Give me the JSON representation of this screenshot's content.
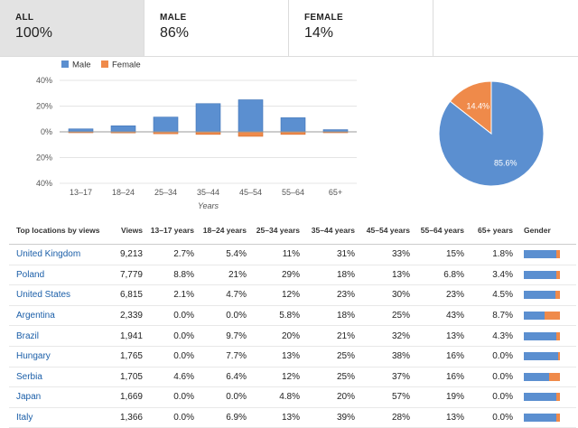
{
  "tabs": [
    {
      "label": "ALL",
      "value": "100%",
      "active": true
    },
    {
      "label": "MALE",
      "value": "86%"
    },
    {
      "label": "FEMALE",
      "value": "14%"
    }
  ],
  "colors": {
    "male": "#5b8fd0",
    "female": "#ef8a4a"
  },
  "chart_data": [
    {
      "type": "bar",
      "categories": [
        "13–17",
        "18–24",
        "25–34",
        "35–44",
        "45–54",
        "55–64",
        "65+"
      ],
      "series": [
        {
          "name": "Male",
          "values": [
            2.3,
            4.7,
            11.5,
            22,
            25,
            11,
            1.7
          ]
        },
        {
          "name": "Female",
          "values": [
            0.3,
            0.8,
            1.5,
            2,
            3.5,
            2,
            0.3
          ]
        }
      ],
      "yticks": [
        "40%",
        "20%",
        "0%",
        "20%",
        "40%"
      ],
      "xlabel": "Years",
      "ylim": [
        -40,
        40
      ],
      "legend": "top-left"
    },
    {
      "type": "pie",
      "labels": [
        "Male",
        "Female"
      ],
      "values": [
        85.6,
        14.4
      ],
      "value_labels": [
        "85.6%",
        "14.4%"
      ]
    }
  ],
  "table": {
    "headers": [
      "Top locations by views",
      "Views",
      "13–17 years",
      "18–24 years",
      "25–34 years",
      "35–44 years",
      "45–54 years",
      "55–64 years",
      "65+ years",
      "Gender"
    ],
    "rows": [
      {
        "name": "United Kingdom",
        "views": "9,213",
        "cols": [
          "2.7%",
          "5.4%",
          "11%",
          "31%",
          "33%",
          "15%",
          "1.8%"
        ],
        "male": 0.9
      },
      {
        "name": "Poland",
        "views": "7,779",
        "cols": [
          "8.8%",
          "21%",
          "29%",
          "18%",
          "13%",
          "6.8%",
          "3.4%"
        ],
        "male": 0.9
      },
      {
        "name": "United States",
        "views": "6,815",
        "cols": [
          "2.1%",
          "4.7%",
          "12%",
          "23%",
          "30%",
          "23%",
          "4.5%"
        ],
        "male": 0.88
      },
      {
        "name": "Argentina",
        "views": "2,339",
        "cols": [
          "0.0%",
          "0.0%",
          "5.8%",
          "18%",
          "25%",
          "43%",
          "8.7%"
        ],
        "male": 0.58
      },
      {
        "name": "Brazil",
        "views": "1,941",
        "cols": [
          "0.0%",
          "9.7%",
          "20%",
          "21%",
          "32%",
          "13%",
          "4.3%"
        ],
        "male": 0.9
      },
      {
        "name": "Hungary",
        "views": "1,765",
        "cols": [
          "0.0%",
          "7.7%",
          "13%",
          "25%",
          "38%",
          "16%",
          "0.0%"
        ],
        "male": 0.95
      },
      {
        "name": "Serbia",
        "views": "1,705",
        "cols": [
          "4.6%",
          "6.4%",
          "12%",
          "25%",
          "37%",
          "16%",
          "0.0%"
        ],
        "male": 0.7
      },
      {
        "name": "Japan",
        "views": "1,669",
        "cols": [
          "0.0%",
          "0.0%",
          "4.8%",
          "20%",
          "57%",
          "19%",
          "0.0%"
        ],
        "male": 0.9
      },
      {
        "name": "Italy",
        "views": "1,366",
        "cols": [
          "0.0%",
          "6.9%",
          "13%",
          "39%",
          "28%",
          "13%",
          "0.0%"
        ],
        "male": 0.9
      }
    ]
  }
}
